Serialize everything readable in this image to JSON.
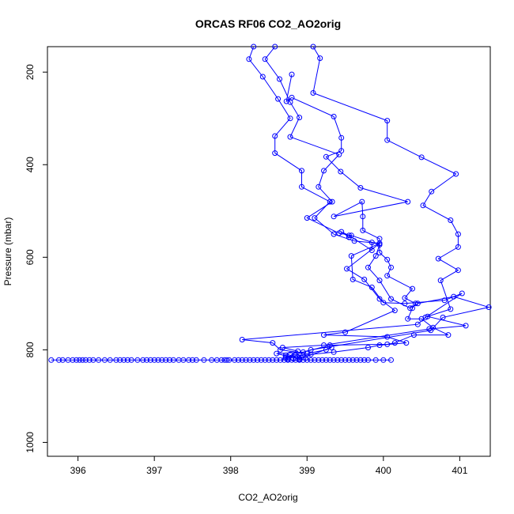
{
  "chart_data": {
    "type": "scatter",
    "title": "ORCAS RF06 CO2_AO2orig",
    "xlabel": "CO2_AO2orig",
    "ylabel": "Pressure (mbar)",
    "xlim": [
      395.6,
      401.4
    ],
    "ylim": [
      1030,
      145
    ],
    "y_reversed": true,
    "x_ticks": [
      396,
      397,
      398,
      399,
      400,
      401
    ],
    "y_ticks": [
      200,
      400,
      600,
      800,
      1000
    ],
    "grid": false,
    "legend": "none",
    "color": "#0000ff",
    "marker": "open-circle",
    "series": [
      {
        "line": true,
        "points": [
          [
            398.3,
            145
          ],
          [
            398.24,
            172
          ],
          [
            398.42,
            210
          ],
          [
            398.62,
            258
          ],
          [
            398.78,
            300
          ],
          [
            398.58,
            338
          ],
          [
            398.58,
            375
          ],
          [
            398.93,
            413
          ],
          [
            398.93,
            448
          ],
          [
            399.3,
            480
          ],
          [
            399.1,
            515
          ],
          [
            399.35,
            550
          ],
          [
            399.62,
            565
          ],
          [
            399.95,
            570
          ],
          [
            399.58,
            597
          ],
          [
            399.6,
            648
          ],
          [
            399.85,
            665
          ],
          [
            400.0,
            698
          ],
          [
            400.28,
            700
          ],
          [
            400.8,
            693
          ],
          [
            401.03,
            678
          ],
          [
            400.55,
            730
          ],
          [
            400.45,
            745
          ],
          [
            398.15,
            778
          ],
          [
            398.55,
            785
          ],
          [
            398.65,
            800
          ],
          [
            399.0,
            808
          ],
          [
            399.25,
            800
          ],
          [
            399.32,
            795
          ],
          [
            398.9,
            820
          ]
        ]
      },
      {
        "line": true,
        "points": [
          [
            398.58,
            145
          ],
          [
            398.45,
            172
          ],
          [
            398.64,
            215
          ],
          [
            398.78,
            265
          ],
          [
            398.9,
            298
          ],
          [
            398.78,
            340
          ],
          [
            399.42,
            378
          ],
          [
            399.22,
            413
          ],
          [
            399.15,
            448
          ],
          [
            399.33,
            480
          ],
          [
            399.0,
            515
          ],
          [
            399.42,
            548
          ],
          [
            399.58,
            553
          ],
          [
            399.95,
            573
          ],
          [
            399.9,
            597
          ],
          [
            399.8,
            622
          ],
          [
            399.95,
            650
          ],
          [
            400.1,
            690
          ],
          [
            400.35,
            710
          ],
          [
            400.45,
            700
          ],
          [
            400.92,
            685
          ],
          [
            401.38,
            708
          ],
          [
            400.78,
            730
          ],
          [
            400.62,
            758
          ],
          [
            399.05,
            800
          ],
          [
            398.75,
            815
          ]
        ]
      },
      {
        "line": true,
        "points": [
          [
            399.08,
            145
          ],
          [
            399.17,
            170
          ],
          [
            399.08,
            245
          ],
          [
            400.05,
            305
          ],
          [
            400.05,
            347
          ],
          [
            400.5,
            384
          ],
          [
            400.95,
            420
          ],
          [
            400.63,
            458
          ],
          [
            400.52,
            488
          ],
          [
            400.88,
            520
          ],
          [
            400.98,
            550
          ],
          [
            400.98,
            578
          ],
          [
            400.72,
            603
          ],
          [
            400.98,
            628
          ],
          [
            400.75,
            650
          ],
          [
            400.88,
            712
          ],
          [
            400.58,
            728
          ],
          [
            401.08,
            748
          ],
          [
            400.6,
            755
          ],
          [
            399.22,
            790
          ],
          [
            398.68,
            795
          ],
          [
            398.88,
            803
          ],
          [
            398.72,
            818
          ]
        ]
      },
      {
        "line": true,
        "points": [
          [
            398.8,
            205
          ],
          [
            398.73,
            263
          ],
          [
            398.8,
            255
          ],
          [
            399.35,
            296
          ],
          [
            399.45,
            342
          ],
          [
            399.45,
            370
          ],
          [
            399.25,
            383
          ],
          [
            399.44,
            415
          ],
          [
            399.7,
            450
          ],
          [
            400.32,
            480
          ],
          [
            399.35,
            512
          ],
          [
            399.72,
            480
          ],
          [
            399.73,
            512
          ],
          [
            399.73,
            542
          ],
          [
            399.95,
            560
          ],
          [
            399.95,
            590
          ],
          [
            400.05,
            605
          ],
          [
            400.1,
            622
          ],
          [
            400.05,
            640
          ],
          [
            400.38,
            668
          ],
          [
            400.28,
            688
          ],
          [
            400.42,
            700
          ],
          [
            400.38,
            710
          ],
          [
            400.32,
            733
          ],
          [
            400.5,
            733
          ],
          [
            400.65,
            752
          ],
          [
            400.85,
            768
          ],
          [
            400.4,
            768
          ],
          [
            400.15,
            785
          ],
          [
            400.05,
            788
          ],
          [
            399.3,
            790
          ],
          [
            398.95,
            805
          ],
          [
            398.6,
            808
          ],
          [
            398.85,
            818
          ]
        ]
      },
      {
        "line": true,
        "points": [
          [
            399.55,
            557
          ],
          [
            399.45,
            545
          ],
          [
            399.55,
            553
          ],
          [
            399.85,
            585
          ],
          [
            399.85,
            568
          ],
          [
            399.95,
            570
          ],
          [
            399.52,
            625
          ],
          [
            399.75,
            648
          ],
          [
            399.95,
            690
          ],
          [
            400.15,
            715
          ],
          [
            399.5,
            762
          ],
          [
            399.22,
            768
          ],
          [
            400.05,
            772
          ],
          [
            400.3,
            785
          ],
          [
            399.95,
            790
          ],
          [
            399.8,
            795
          ],
          [
            399.35,
            805
          ],
          [
            399.05,
            810
          ],
          [
            398.72,
            815
          ]
        ]
      },
      {
        "line": true,
        "points": [
          [
            395.65,
            822
          ],
          [
            395.75,
            822
          ],
          [
            395.8,
            822
          ],
          [
            395.87,
            822
          ],
          [
            395.93,
            822
          ],
          [
            395.98,
            822
          ],
          [
            396.02,
            822
          ],
          [
            396.06,
            822
          ],
          [
            396.1,
            822
          ],
          [
            396.15,
            822
          ],
          [
            396.2,
            822
          ],
          [
            396.27,
            822
          ],
          [
            396.35,
            822
          ],
          [
            396.42,
            822
          ],
          [
            396.5,
            822
          ],
          [
            396.55,
            822
          ],
          [
            396.6,
            822
          ],
          [
            396.65,
            822
          ],
          [
            396.7,
            822
          ],
          [
            396.78,
            822
          ],
          [
            396.85,
            822
          ],
          [
            396.9,
            822
          ],
          [
            396.95,
            822
          ],
          [
            397.0,
            822
          ],
          [
            397.05,
            822
          ],
          [
            397.1,
            822
          ],
          [
            397.15,
            822
          ],
          [
            397.2,
            822
          ],
          [
            397.25,
            822
          ],
          [
            397.32,
            822
          ],
          [
            397.38,
            822
          ],
          [
            397.45,
            822
          ],
          [
            397.5,
            822
          ],
          [
            397.55,
            822
          ],
          [
            397.65,
            822
          ],
          [
            397.75,
            822
          ],
          [
            397.82,
            822
          ],
          [
            397.88,
            822
          ],
          [
            397.92,
            822
          ],
          [
            397.95,
            822
          ],
          [
            397.98,
            822
          ],
          [
            398.05,
            822
          ],
          [
            398.1,
            822
          ],
          [
            398.15,
            822
          ],
          [
            398.2,
            822
          ],
          [
            398.25,
            822
          ],
          [
            398.3,
            822
          ],
          [
            398.35,
            822
          ],
          [
            398.4,
            822
          ],
          [
            398.45,
            822
          ],
          [
            398.5,
            822
          ],
          [
            398.55,
            822
          ],
          [
            398.6,
            822
          ],
          [
            398.65,
            822
          ],
          [
            398.7,
            822
          ],
          [
            398.75,
            822
          ],
          [
            398.8,
            822
          ],
          [
            398.85,
            822
          ],
          [
            398.9,
            822
          ],
          [
            398.95,
            822
          ],
          [
            399.0,
            822
          ],
          [
            399.05,
            822
          ],
          [
            399.1,
            822
          ],
          [
            399.15,
            822
          ],
          [
            399.2,
            822
          ],
          [
            399.25,
            822
          ],
          [
            399.3,
            822
          ],
          [
            399.35,
            822
          ],
          [
            399.4,
            822
          ],
          [
            399.45,
            822
          ],
          [
            399.5,
            822
          ],
          [
            399.55,
            822
          ],
          [
            399.6,
            822
          ],
          [
            399.65,
            822
          ],
          [
            399.7,
            822
          ],
          [
            399.75,
            822
          ],
          [
            399.8,
            822
          ],
          [
            399.9,
            822
          ],
          [
            400.0,
            822
          ],
          [
            400.1,
            822
          ]
        ]
      },
      {
        "line": false,
        "points": [
          [
            398.78,
            810
          ],
          [
            398.85,
            812
          ],
          [
            398.88,
            815
          ],
          [
            398.92,
            817
          ],
          [
            398.82,
            819
          ],
          [
            398.95,
            812
          ],
          [
            398.98,
            818
          ],
          [
            398.75,
            820
          ],
          [
            398.9,
            821
          ],
          [
            398.72,
            812
          ]
        ]
      }
    ]
  }
}
